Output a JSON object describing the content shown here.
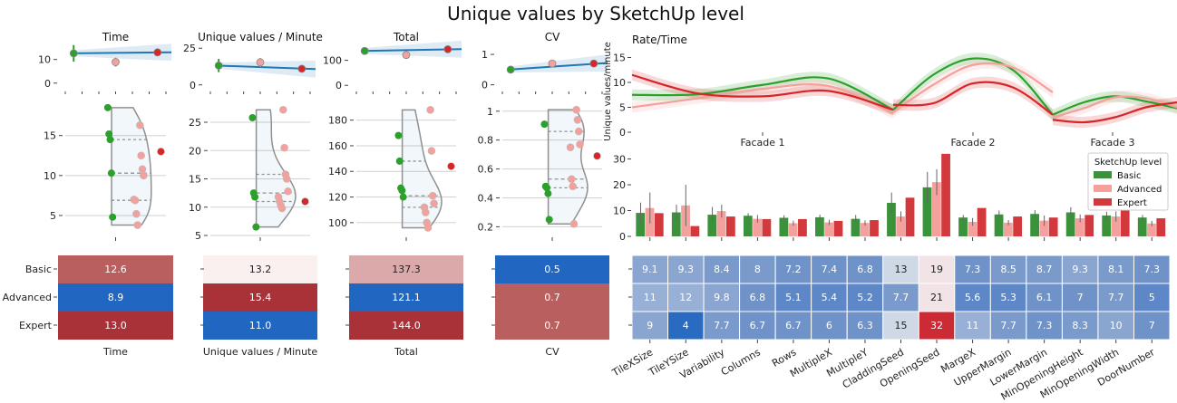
{
  "figure": {
    "title": "Unique values by SketchUp level"
  },
  "colors": {
    "basic": "#2ca02c",
    "advanced": "#f4a09c",
    "expert": "#d62728",
    "blue": "#1f77b4",
    "grid": "#d0d0d0",
    "violin": "#909090"
  },
  "chart_data": [
    {
      "type": "scatter",
      "panel": "time-summary",
      "title": "Time",
      "ylim": [
        -2,
        16
      ],
      "yticks": [
        0,
        10
      ],
      "points": [
        {
          "group": "Basic",
          "x": 1.0,
          "y": 12.6,
          "err": 3.5
        },
        {
          "group": "Advanced",
          "x": 2.0,
          "y": 8.9,
          "err": 2.0
        },
        {
          "group": "Expert",
          "x": 3.0,
          "y": 13.0,
          "err": 0
        }
      ]
    },
    {
      "type": "scatter",
      "panel": "uvm-summary",
      "title": "Unique values / Minute",
      "ylim": [
        -2,
        27
      ],
      "yticks": [
        0,
        25
      ],
      "points": [
        {
          "group": "Basic",
          "x": 1.0,
          "y": 13.2,
          "err": 4.5
        },
        {
          "group": "Advanced",
          "x": 2.0,
          "y": 15.4,
          "err": 3.0
        },
        {
          "group": "Expert",
          "x": 3.0,
          "y": 11.0,
          "err": 0
        }
      ]
    },
    {
      "type": "scatter",
      "panel": "total-summary",
      "title": "Total",
      "ylim": [
        -10,
        160
      ],
      "yticks": [
        0,
        100
      ],
      "points": [
        {
          "group": "Basic",
          "x": 1.0,
          "y": 137.3,
          "err": 12
        },
        {
          "group": "Advanced",
          "x": 2.0,
          "y": 121.1,
          "err": 10
        },
        {
          "group": "Expert",
          "x": 3.0,
          "y": 144.0,
          "err": 0
        }
      ]
    },
    {
      "type": "scatter",
      "panel": "cv-summary",
      "title": "CV",
      "ylim": [
        -0.1,
        1.3
      ],
      "yticks": [
        0,
        1
      ],
      "points": [
        {
          "group": "Basic",
          "x": 1.0,
          "y": 0.5,
          "err": 0.12
        },
        {
          "group": "Advanced",
          "x": 2.0,
          "y": 0.7,
          "err": 0.1
        },
        {
          "group": "Expert",
          "x": 3.0,
          "y": 0.7,
          "err": 0
        }
      ]
    },
    {
      "type": "scatter",
      "panel": "time-violin",
      "ylim": [
        2.5,
        19.5
      ],
      "yticks": [
        5,
        10,
        15
      ],
      "grid": true,
      "points": [
        {
          "group": "Basic",
          "y": 18.5
        },
        {
          "group": "Basic",
          "y": 15.2
        },
        {
          "group": "Basic",
          "y": 14.5
        },
        {
          "group": "Basic",
          "y": 10.3
        },
        {
          "group": "Basic",
          "y": 4.8
        },
        {
          "group": "Advanced",
          "y": 16.3
        },
        {
          "group": "Advanced",
          "y": 12.5
        },
        {
          "group": "Advanced",
          "y": 10.8
        },
        {
          "group": "Advanced",
          "y": 10.0
        },
        {
          "group": "Advanced",
          "y": 7.0
        },
        {
          "group": "Advanced",
          "y": 6.9
        },
        {
          "group": "Advanced",
          "y": 5.2
        },
        {
          "group": "Advanced",
          "y": 3.8
        },
        {
          "group": "Expert",
          "y": 13.0
        }
      ]
    },
    {
      "type": "scatter",
      "panel": "uvm-violin",
      "ylim": [
        5,
        29
      ],
      "yticks": [
        5,
        10,
        15,
        20,
        25
      ],
      "grid": true,
      "points": [
        {
          "group": "Basic",
          "y": 25.8
        },
        {
          "group": "Basic",
          "y": 12.5
        },
        {
          "group": "Basic",
          "y": 11.8
        },
        {
          "group": "Basic",
          "y": 6.5
        },
        {
          "group": "Advanced",
          "y": 27.2
        },
        {
          "group": "Advanced",
          "y": 20.5
        },
        {
          "group": "Advanced",
          "y": 15.8
        },
        {
          "group": "Advanced",
          "y": 15.0
        },
        {
          "group": "Advanced",
          "y": 12.8
        },
        {
          "group": "Advanced",
          "y": 11.8
        },
        {
          "group": "Advanced",
          "y": 11.0
        },
        {
          "group": "Advanced",
          "y": 10.3
        },
        {
          "group": "Advanced",
          "y": 9.8
        },
        {
          "group": "Expert",
          "y": 11.0
        }
      ]
    },
    {
      "type": "scatter",
      "panel": "total-violin",
      "ylim": [
        90,
        196
      ],
      "yticks": [
        100,
        120,
        140,
        160,
        180
      ],
      "grid": true,
      "points": [
        {
          "group": "Basic",
          "y": 168
        },
        {
          "group": "Basic",
          "y": 148
        },
        {
          "group": "Basic",
          "y": 127
        },
        {
          "group": "Basic",
          "y": 125
        },
        {
          "group": "Basic",
          "y": 120
        },
        {
          "group": "Advanced",
          "y": 188
        },
        {
          "group": "Advanced",
          "y": 156
        },
        {
          "group": "Advanced",
          "y": 121
        },
        {
          "group": "Advanced",
          "y": 115
        },
        {
          "group": "Advanced",
          "y": 112
        },
        {
          "group": "Advanced",
          "y": 108
        },
        {
          "group": "Advanced",
          "y": 100
        },
        {
          "group": "Advanced",
          "y": 96
        },
        {
          "group": "Expert",
          "y": 144
        }
      ]
    },
    {
      "type": "scatter",
      "panel": "cv-violin",
      "ylim": [
        0.14,
        1.08
      ],
      "yticks": [
        0.2,
        0.4,
        0.6,
        0.8,
        1.0
      ],
      "grid": true,
      "points": [
        {
          "group": "Basic",
          "y": 0.91
        },
        {
          "group": "Basic",
          "y": 0.48
        },
        {
          "group": "Basic",
          "y": 0.47
        },
        {
          "group": "Basic",
          "y": 0.43
        },
        {
          "group": "Basic",
          "y": 0.25
        },
        {
          "group": "Advanced",
          "y": 1.01
        },
        {
          "group": "Advanced",
          "y": 0.94
        },
        {
          "group": "Advanced",
          "y": 0.86
        },
        {
          "group": "Advanced",
          "y": 0.77
        },
        {
          "group": "Advanced",
          "y": 0.75
        },
        {
          "group": "Advanced",
          "y": 0.53
        },
        {
          "group": "Advanced",
          "y": 0.48
        },
        {
          "group": "Advanced",
          "y": 0.22
        },
        {
          "group": "Expert",
          "y": 0.69
        }
      ]
    },
    {
      "type": "heatmap",
      "panel": "summary-heatmaps",
      "rows": [
        "Basic",
        "Advanced",
        "Expert"
      ],
      "columns": [
        {
          "label": "Time",
          "values": [
            12.6,
            8.9,
            13.0
          ]
        },
        {
          "label": "Unique values / Minute",
          "values": [
            13.2,
            15.4,
            11.0
          ]
        },
        {
          "label": "Total",
          "values": [
            137.3,
            121.1,
            144.0
          ]
        },
        {
          "label": "CV",
          "values": [
            "0.5",
            "0.7",
            "0.7"
          ]
        }
      ]
    },
    {
      "type": "line",
      "panel": "rate-time",
      "title": "Rate/Time",
      "ylabel": "Unique values/minute",
      "ylim": [
        0,
        16
      ],
      "yticks": [
        0,
        5,
        10,
        15
      ],
      "xticklabels": [
        "Facade 1",
        "Facade 2",
        "Facade 3"
      ],
      "segments": [
        {
          "name": "Facade 1",
          "x": [
            0,
            0.25,
            0.5,
            0.75,
            1
          ],
          "series": [
            {
              "group": "Basic",
              "values": [
                7.5,
                7.6,
                9.5,
                10.8,
                4.5
              ]
            },
            {
              "group": "Advanced",
              "values": [
                5.0,
                6.8,
                8.7,
                9.3,
                3.8
              ]
            },
            {
              "group": "Expert",
              "values": [
                11.5,
                7.8,
                7.2,
                8.3,
                4.5
              ]
            }
          ]
        },
        {
          "name": "Facade 2",
          "x": [
            0,
            0.25,
            0.5,
            0.75,
            1
          ],
          "series": [
            {
              "group": "Basic",
              "values": [
                4.5,
                11.5,
                14.8,
                12.5,
                3.5
              ]
            },
            {
              "group": "Advanced",
              "values": [
                4.0,
                9.5,
                13.5,
                13.0,
                8.0
              ]
            },
            {
              "group": "Expert",
              "values": [
                5.5,
                5.8,
                9.8,
                9.0,
                3.5
              ]
            }
          ]
        },
        {
          "name": "Facade 3",
          "x": [
            0,
            0.25,
            0.5,
            0.75,
            1
          ],
          "series": [
            {
              "group": "Basic",
              "values": [
                3.5,
                6.0,
                7.2,
                6.2,
                4.8
              ]
            },
            {
              "group": "Advanced",
              "values": [
                3.0,
                4.8,
                7.0,
                6.8,
                5.0
              ]
            },
            {
              "group": "Expert",
              "values": [
                2.5,
                2.0,
                3.0,
                5.0,
                6.0
              ]
            }
          ]
        }
      ]
    },
    {
      "type": "bar",
      "panel": "features-bars",
      "legend_title": "SketchUp level",
      "legend_position": "upper-right",
      "ylim": [
        0,
        33
      ],
      "yticks": [
        0,
        10,
        20,
        30
      ],
      "categories": [
        "TileXSize",
        "TileYSize",
        "Variability",
        "Columns",
        "Rows",
        "MultipleX",
        "MultipleY",
        "CladdingSeed",
        "OpeningSeed",
        "MargeX",
        "UpperMargin",
        "LowerMargin",
        "MinOpeningHeight",
        "MinOpeningWidth",
        "DoorNumber"
      ],
      "series": [
        {
          "name": "Basic",
          "values": [
            9.1,
            9.3,
            8.4,
            8,
            7.2,
            7.4,
            6.8,
            13,
            19,
            7.3,
            8.5,
            8.7,
            9.3,
            8.1,
            7.3
          ],
          "err": [
            4,
            3,
            3,
            1,
            1,
            1,
            1.5,
            4,
            6,
            1,
            1.5,
            1.5,
            2,
            1.5,
            1
          ]
        },
        {
          "name": "Advanced",
          "values": [
            11,
            12,
            9.8,
            6.8,
            5.1,
            5.4,
            5.2,
            7.7,
            21,
            5.6,
            5.3,
            6.1,
            7,
            7.7,
            5
          ],
          "err": [
            6,
            8,
            2.5,
            1.5,
            1,
            1,
            1,
            2,
            5,
            1.5,
            1,
            2,
            1.5,
            2,
            1
          ]
        },
        {
          "name": "Expert",
          "values": [
            9,
            4,
            7.7,
            6.7,
            6.7,
            6,
            6.3,
            15,
            32,
            11,
            7.7,
            7.3,
            8.3,
            10,
            7
          ],
          "err": [
            0,
            0,
            0,
            0,
            0,
            0,
            0,
            0,
            0,
            0,
            0,
            0,
            0,
            0,
            0
          ]
        }
      ]
    },
    {
      "type": "heatmap",
      "panel": "features-heatmap",
      "rows": [
        "Basic",
        "Advanced",
        "Expert"
      ],
      "columns": [
        "TileXSize",
        "TileYSize",
        "Variability",
        "Columns",
        "Rows",
        "MultipleX",
        "MultipleY",
        "CladdingSeed",
        "OpeningSeed",
        "MargeX",
        "UpperMargin",
        "LowerMargin",
        "MinOpeningHeight",
        "MinOpeningWidth",
        "DoorNumber"
      ],
      "values": [
        [
          "9.1",
          "9.3",
          "8.4",
          "8",
          "7.2",
          "7.4",
          "6.8",
          "13",
          "19",
          "7.3",
          "8.5",
          "8.7",
          "9.3",
          "8.1",
          "7.3"
        ],
        [
          "11",
          "12",
          "9.8",
          "6.8",
          "5.1",
          "5.4",
          "5.2",
          "7.7",
          "21",
          "5.6",
          "5.3",
          "6.1",
          "7",
          "7.7",
          "5"
        ],
        [
          "9",
          "4",
          "7.7",
          "6.7",
          "6.7",
          "6",
          "6.3",
          "15",
          "32",
          "11",
          "7.7",
          "7.3",
          "8.3",
          "10",
          "7"
        ]
      ]
    }
  ]
}
